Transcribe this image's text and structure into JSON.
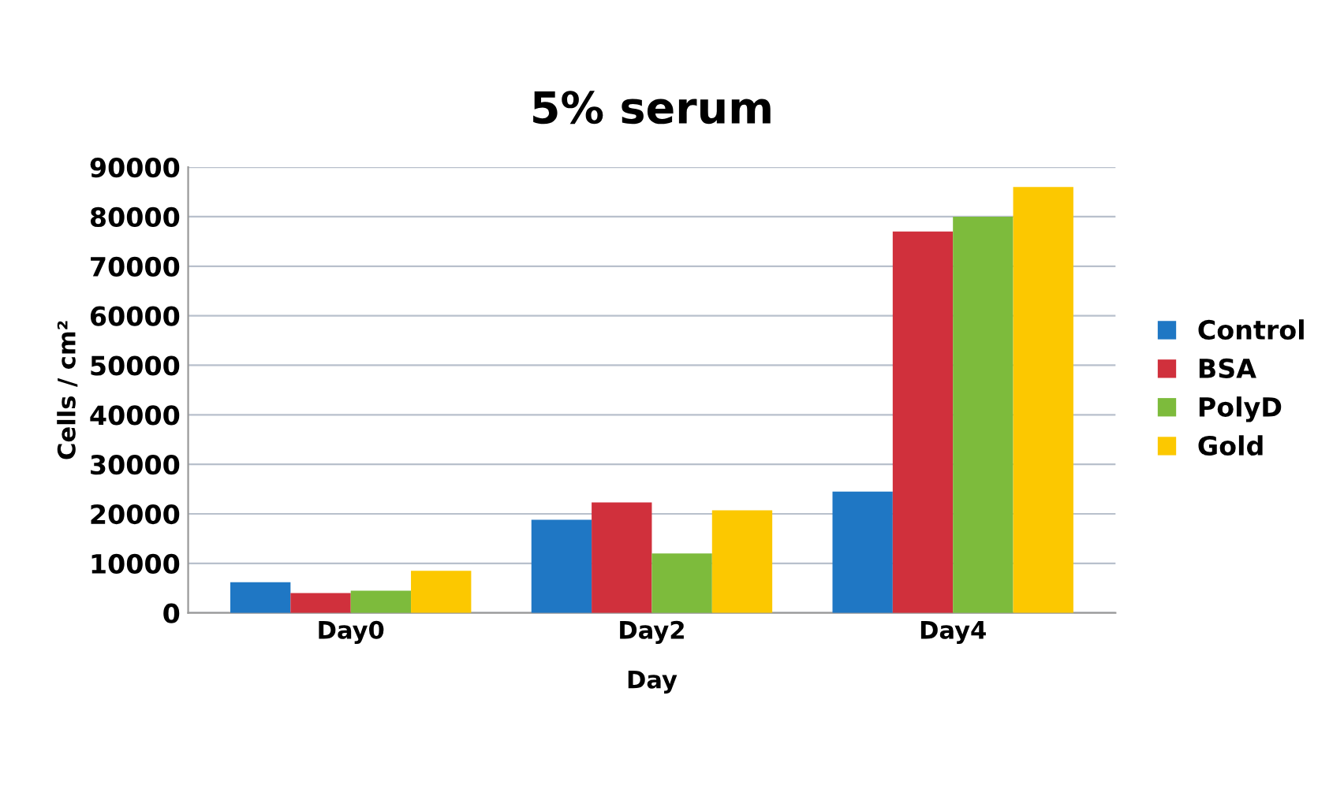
{
  "chart_data": {
    "type": "bar",
    "title": "5% serum",
    "xlabel": "Day",
    "ylabel": "Cells / cm²",
    "categories": [
      "Day0",
      "Day2",
      "Day4"
    ],
    "series": [
      {
        "name": "Control",
        "color": "#1f77c4",
        "values": [
          6200,
          18800,
          24500
        ]
      },
      {
        "name": "BSA",
        "color": "#d0303c",
        "values": [
          4000,
          22300,
          77000
        ]
      },
      {
        "name": "PolyD",
        "color": "#7dbb3c",
        "values": [
          4500,
          12000,
          80000
        ]
      },
      {
        "name": "Gold",
        "color": "#fcc800",
        "values": [
          8500,
          20700,
          86000
        ]
      }
    ],
    "ylim": [
      0,
      90000
    ],
    "yticks": [
      0,
      10000,
      20000,
      30000,
      40000,
      50000,
      60000,
      70000,
      80000,
      90000
    ],
    "grid": "y",
    "legend": "right"
  }
}
